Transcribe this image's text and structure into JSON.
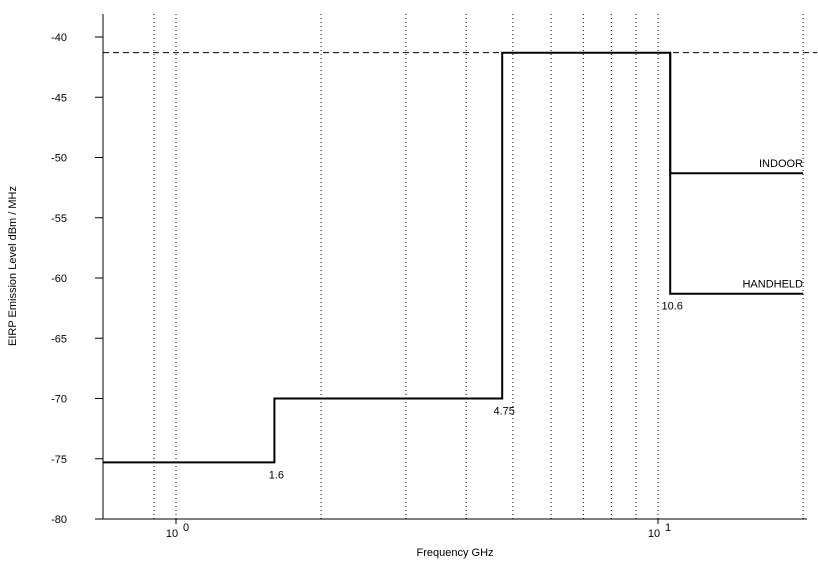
{
  "chart_data": {
    "type": "line",
    "title": "",
    "xlabel": "Frequency GHz",
    "ylabel": "EIRP Emission Level dBm / MHz",
    "x_scale": "log",
    "xlim": [
      0.7,
      20
    ],
    "ylim": [
      -80,
      -37
    ],
    "grid": {
      "x": "dotted-vertical",
      "y": "none"
    },
    "x_ticks": [
      {
        "value": 1,
        "label": "10",
        "exp": "0"
      },
      {
        "value": 10,
        "label": "10",
        "exp": "1"
      }
    ],
    "y_ticks": [
      -40,
      -45,
      -50,
      -55,
      -60,
      -65,
      -70,
      -75,
      -80
    ],
    "x_gridlines": [
      0.9,
      1,
      2,
      3,
      4,
      5,
      6,
      7,
      8,
      9,
      10,
      20
    ],
    "reference_line": {
      "y": -41.3,
      "style": "dashed"
    },
    "series": [
      {
        "name": "INDOOR",
        "x": [
          0.7,
          1.6,
          1.6,
          4.75,
          4.75,
          10.6,
          10.6,
          20
        ],
        "y": [
          -75.3,
          -75.3,
          -70,
          -70,
          -41.3,
          -41.3,
          -51.3,
          -51.3
        ]
      },
      {
        "name": "HANDHELD",
        "x": [
          10.6,
          10.6,
          20
        ],
        "y": [
          -41.3,
          -61.3,
          -61.3
        ]
      }
    ],
    "annotations": [
      {
        "text": "1.6",
        "x": 1.6,
        "y": -75.3
      },
      {
        "text": "4.75",
        "x": 4.75,
        "y": -70
      },
      {
        "text": "10.6",
        "x": 10.6,
        "y": -61.3
      }
    ],
    "color": "#000000"
  }
}
